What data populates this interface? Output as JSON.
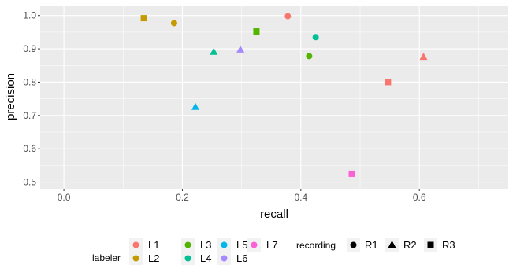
{
  "chart_data": {
    "type": "scatter",
    "xlabel": "recall",
    "ylabel": "precision",
    "xlim": [
      -0.04,
      0.75
    ],
    "ylim": [
      0.48,
      1.03
    ],
    "x_ticks": [
      {
        "value": 0.0,
        "label": "0.0"
      },
      {
        "value": 0.2,
        "label": "0.2"
      },
      {
        "value": 0.4,
        "label": "0.4"
      },
      {
        "value": 0.6,
        "label": "0.6"
      }
    ],
    "y_ticks": [
      {
        "value": 0.5,
        "label": "0.5"
      },
      {
        "value": 0.6,
        "label": "0.6"
      },
      {
        "value": 0.7,
        "label": "0.7"
      },
      {
        "value": 0.8,
        "label": "0.8"
      },
      {
        "value": 0.9,
        "label": "0.9"
      },
      {
        "value": 1.0,
        "label": "1.0"
      }
    ],
    "grid": true,
    "legend_position": "bottom",
    "colour_legend": {
      "title": "labeler",
      "entries": [
        {
          "label": "L1",
          "color": "#F8766D"
        },
        {
          "label": "L2",
          "color": "#C49A00"
        },
        {
          "label": "L3",
          "color": "#53B400"
        },
        {
          "label": "L4",
          "color": "#00C094"
        },
        {
          "label": "L5",
          "color": "#00B6EB"
        },
        {
          "label": "L6",
          "color": "#A58AFF"
        },
        {
          "label": "L7",
          "color": "#FB61D7"
        }
      ]
    },
    "shape_legend": {
      "title": "recording",
      "entries": [
        {
          "label": "R1",
          "shape": "circle"
        },
        {
          "label": "R2",
          "shape": "triangle"
        },
        {
          "label": "R3",
          "shape": "square"
        }
      ]
    },
    "points": [
      {
        "labeler": "L1",
        "recording": "R1",
        "x": 0.378,
        "y": 0.998
      },
      {
        "labeler": "L1",
        "recording": "R2",
        "x": 0.607,
        "y": 0.875
      },
      {
        "labeler": "L1",
        "recording": "R3",
        "x": 0.547,
        "y": 0.8
      },
      {
        "labeler": "L2",
        "recording": "R1",
        "x": 0.186,
        "y": 0.977
      },
      {
        "labeler": "L2",
        "recording": "R3",
        "x": 0.135,
        "y": 0.992
      },
      {
        "labeler": "L3",
        "recording": "R1",
        "x": 0.414,
        "y": 0.878
      },
      {
        "labeler": "L3",
        "recording": "R3",
        "x": 0.325,
        "y": 0.952
      },
      {
        "labeler": "L4",
        "recording": "R1",
        "x": 0.425,
        "y": 0.935
      },
      {
        "labeler": "L4",
        "recording": "R2",
        "x": 0.253,
        "y": 0.89
      },
      {
        "labeler": "L5",
        "recording": "R2",
        "x": 0.222,
        "y": 0.725
      },
      {
        "labeler": "L6",
        "recording": "R2",
        "x": 0.298,
        "y": 0.897
      },
      {
        "labeler": "L7",
        "recording": "R3",
        "x": 0.486,
        "y": 0.525
      }
    ],
    "panel_background": "#EBEBEB",
    "grid_color": "#FFFFFF"
  }
}
